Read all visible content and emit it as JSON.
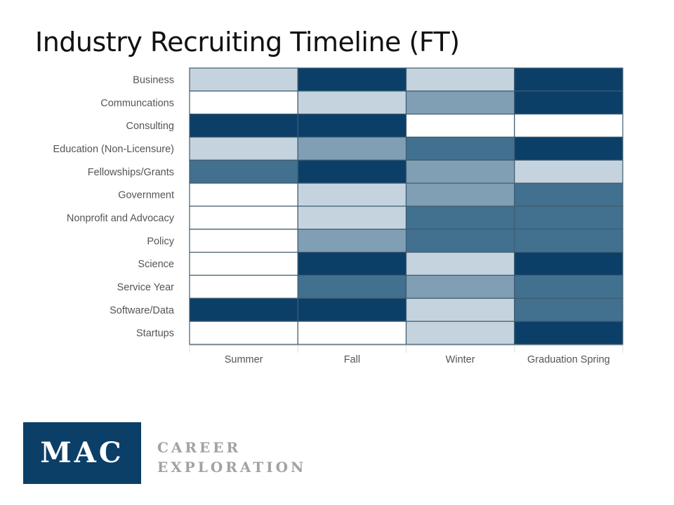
{
  "title": "Industry Recruiting Timeline (FT)",
  "chart_data": {
    "type": "heatmap",
    "title": "Industry Recruiting Timeline (FT)",
    "x_categories": [
      "Summer",
      "Fall",
      "Winter",
      "Graduation Spring"
    ],
    "y_categories": [
      "Business",
      "Communcations",
      "Consulting",
      "Education (Non-Licensure)",
      "Fellowships/Grants",
      "Government",
      "Nonprofit and Advocacy",
      "Policy",
      "Science",
      "Service Year",
      "Software/Data",
      "Startups"
    ],
    "values": [
      [
        1,
        4,
        1,
        4
      ],
      [
        0,
        1,
        2,
        4
      ],
      [
        4,
        4,
        0,
        0
      ],
      [
        1,
        2,
        3,
        4
      ],
      [
        3,
        4,
        2,
        1
      ],
      [
        0,
        1,
        2,
        3
      ],
      [
        0,
        1,
        3,
        3
      ],
      [
        0,
        2,
        3,
        3
      ],
      [
        0,
        4,
        1,
        4
      ],
      [
        0,
        3,
        2,
        3
      ],
      [
        4,
        4,
        1,
        3
      ],
      [
        0,
        0,
        1,
        4
      ]
    ],
    "value_range": [
      0,
      4
    ],
    "colors": [
      "#ffffff",
      "#c4d3de",
      "#809fb5",
      "#42708f",
      "#0b3f68"
    ],
    "legend": "none"
  },
  "logo": {
    "mark": "MAC",
    "line1": "CAREER",
    "line2": "EXPLORATION",
    "color": "#0b3f68"
  }
}
